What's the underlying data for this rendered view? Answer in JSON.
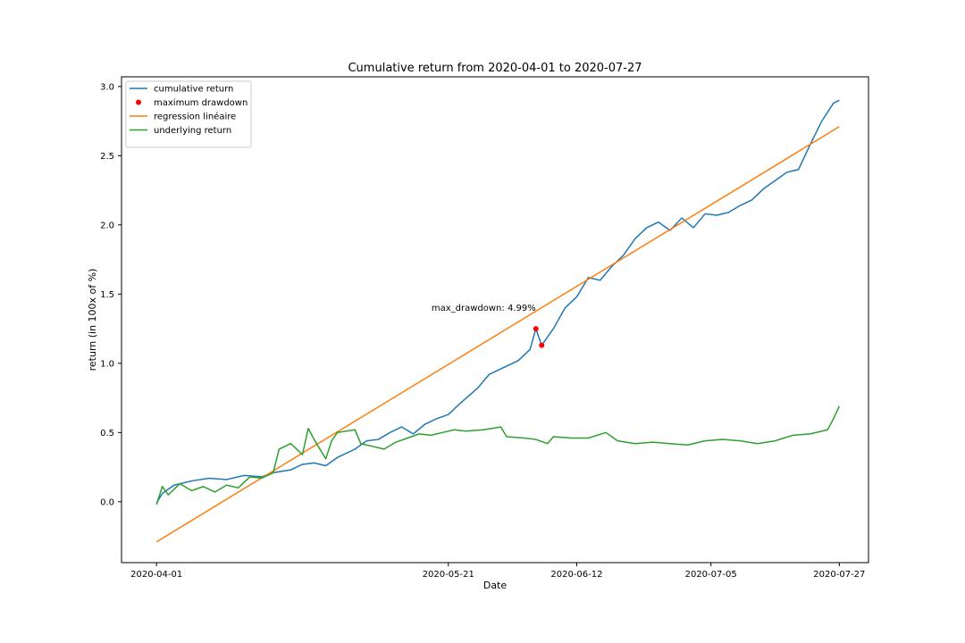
{
  "chart_data": {
    "type": "line",
    "title": "Cumulative return from 2020-04-01 to 2020-07-27",
    "xlabel": "Date",
    "ylabel": "return (in 100x of %)",
    "x_ticks": [
      "2020-04-01",
      "2020-05-21",
      "2020-06-12",
      "2020-07-05",
      "2020-07-27"
    ],
    "y_ticks": [
      "0.0",
      "0.5",
      "1.0",
      "1.5",
      "2.0",
      "2.5",
      "3.0"
    ],
    "xlim": [
      "2020-03-26",
      "2020-08-01"
    ],
    "ylim": [
      -0.44,
      3.07
    ],
    "grid": false,
    "legend_position": "top-left",
    "series": [
      {
        "name": "cumulative return",
        "color": "#1f77b4",
        "style": "line",
        "points": [
          [
            "2020-04-01",
            -0.01
          ],
          [
            "2020-04-02",
            0.06
          ],
          [
            "2020-04-04",
            0.12
          ],
          [
            "2020-04-07",
            0.15
          ],
          [
            "2020-04-10",
            0.17
          ],
          [
            "2020-04-13",
            0.16
          ],
          [
            "2020-04-16",
            0.19
          ],
          [
            "2020-04-19",
            0.18
          ],
          [
            "2020-04-21",
            0.21
          ],
          [
            "2020-04-24",
            0.23
          ],
          [
            "2020-04-26",
            0.27
          ],
          [
            "2020-04-28",
            0.28
          ],
          [
            "2020-04-30",
            0.26
          ],
          [
            "2020-05-02",
            0.32
          ],
          [
            "2020-05-05",
            0.38
          ],
          [
            "2020-05-07",
            0.44
          ],
          [
            "2020-05-09",
            0.45
          ],
          [
            "2020-05-11",
            0.5
          ],
          [
            "2020-05-13",
            0.54
          ],
          [
            "2020-05-15",
            0.49
          ],
          [
            "2020-05-17",
            0.56
          ],
          [
            "2020-05-19",
            0.6
          ],
          [
            "2020-05-21",
            0.63
          ],
          [
            "2020-05-23",
            0.71
          ],
          [
            "2020-05-26",
            0.82
          ],
          [
            "2020-05-28",
            0.92
          ],
          [
            "2020-05-31",
            0.98
          ],
          [
            "2020-06-02",
            1.02
          ],
          [
            "2020-06-04",
            1.1
          ],
          [
            "2020-06-05",
            1.25
          ],
          [
            "2020-06-06",
            1.13
          ],
          [
            "2020-06-08",
            1.25
          ],
          [
            "2020-06-10",
            1.4
          ],
          [
            "2020-06-12",
            1.48
          ],
          [
            "2020-06-14",
            1.62
          ],
          [
            "2020-06-16",
            1.6
          ],
          [
            "2020-06-18",
            1.7
          ],
          [
            "2020-06-20",
            1.78
          ],
          [
            "2020-06-22",
            1.9
          ],
          [
            "2020-06-24",
            1.98
          ],
          [
            "2020-06-26",
            2.02
          ],
          [
            "2020-06-28",
            1.96
          ],
          [
            "2020-06-30",
            2.05
          ],
          [
            "2020-07-02",
            1.98
          ],
          [
            "2020-07-04",
            2.08
          ],
          [
            "2020-07-06",
            2.07
          ],
          [
            "2020-07-08",
            2.09
          ],
          [
            "2020-07-10",
            2.14
          ],
          [
            "2020-07-12",
            2.18
          ],
          [
            "2020-07-14",
            2.26
          ],
          [
            "2020-07-16",
            2.32
          ],
          [
            "2020-07-18",
            2.38
          ],
          [
            "2020-07-20",
            2.4
          ],
          [
            "2020-07-22",
            2.58
          ],
          [
            "2020-07-24",
            2.75
          ],
          [
            "2020-07-26",
            2.88
          ],
          [
            "2020-07-27",
            2.9
          ]
        ]
      },
      {
        "name": "maximum drawdown",
        "color": "#ff0000",
        "style": "scatter",
        "points": [
          [
            "2020-06-05",
            1.25
          ],
          [
            "2020-06-06",
            1.13
          ]
        ]
      },
      {
        "name": "regression linéaire",
        "color": "#ff7f0e",
        "style": "line",
        "points": [
          [
            "2020-04-01",
            -0.29
          ],
          [
            "2020-07-27",
            2.71
          ]
        ]
      },
      {
        "name": "underlying return",
        "color": "#2ca02c",
        "style": "line",
        "points": [
          [
            "2020-04-01",
            -0.02
          ],
          [
            "2020-04-02",
            0.11
          ],
          [
            "2020-04-03",
            0.05
          ],
          [
            "2020-04-05",
            0.13
          ],
          [
            "2020-04-07",
            0.08
          ],
          [
            "2020-04-09",
            0.11
          ],
          [
            "2020-04-11",
            0.07
          ],
          [
            "2020-04-13",
            0.12
          ],
          [
            "2020-04-15",
            0.1
          ],
          [
            "2020-04-17",
            0.18
          ],
          [
            "2020-04-19",
            0.17
          ],
          [
            "2020-04-21",
            0.21
          ],
          [
            "2020-04-22",
            0.38
          ],
          [
            "2020-04-24",
            0.42
          ],
          [
            "2020-04-26",
            0.34
          ],
          [
            "2020-04-27",
            0.53
          ],
          [
            "2020-04-28",
            0.45
          ],
          [
            "2020-04-30",
            0.31
          ],
          [
            "2020-05-01",
            0.44
          ],
          [
            "2020-05-02",
            0.5
          ],
          [
            "2020-05-05",
            0.52
          ],
          [
            "2020-05-06",
            0.42
          ],
          [
            "2020-05-08",
            0.4
          ],
          [
            "2020-05-10",
            0.38
          ],
          [
            "2020-05-12",
            0.43
          ],
          [
            "2020-05-14",
            0.46
          ],
          [
            "2020-05-16",
            0.49
          ],
          [
            "2020-05-18",
            0.48
          ],
          [
            "2020-05-20",
            0.5
          ],
          [
            "2020-05-22",
            0.52
          ],
          [
            "2020-05-24",
            0.51
          ],
          [
            "2020-05-27",
            0.52
          ],
          [
            "2020-05-30",
            0.54
          ],
          [
            "2020-05-31",
            0.47
          ],
          [
            "2020-06-03",
            0.46
          ],
          [
            "2020-06-05",
            0.45
          ],
          [
            "2020-06-07",
            0.42
          ],
          [
            "2020-06-08",
            0.47
          ],
          [
            "2020-06-11",
            0.46
          ],
          [
            "2020-06-14",
            0.46
          ],
          [
            "2020-06-17",
            0.5
          ],
          [
            "2020-06-19",
            0.44
          ],
          [
            "2020-06-22",
            0.42
          ],
          [
            "2020-06-25",
            0.43
          ],
          [
            "2020-06-28",
            0.42
          ],
          [
            "2020-07-01",
            0.41
          ],
          [
            "2020-07-04",
            0.44
          ],
          [
            "2020-07-07",
            0.45
          ],
          [
            "2020-07-10",
            0.44
          ],
          [
            "2020-07-13",
            0.42
          ],
          [
            "2020-07-16",
            0.44
          ],
          [
            "2020-07-19",
            0.48
          ],
          [
            "2020-07-22",
            0.49
          ],
          [
            "2020-07-25",
            0.52
          ],
          [
            "2020-07-26",
            0.6
          ],
          [
            "2020-07-27",
            0.69
          ]
        ]
      }
    ],
    "annotations": [
      {
        "text": "max_drawdown: 4.99%",
        "x": "2020-06-05",
        "y": 1.38
      }
    ]
  }
}
